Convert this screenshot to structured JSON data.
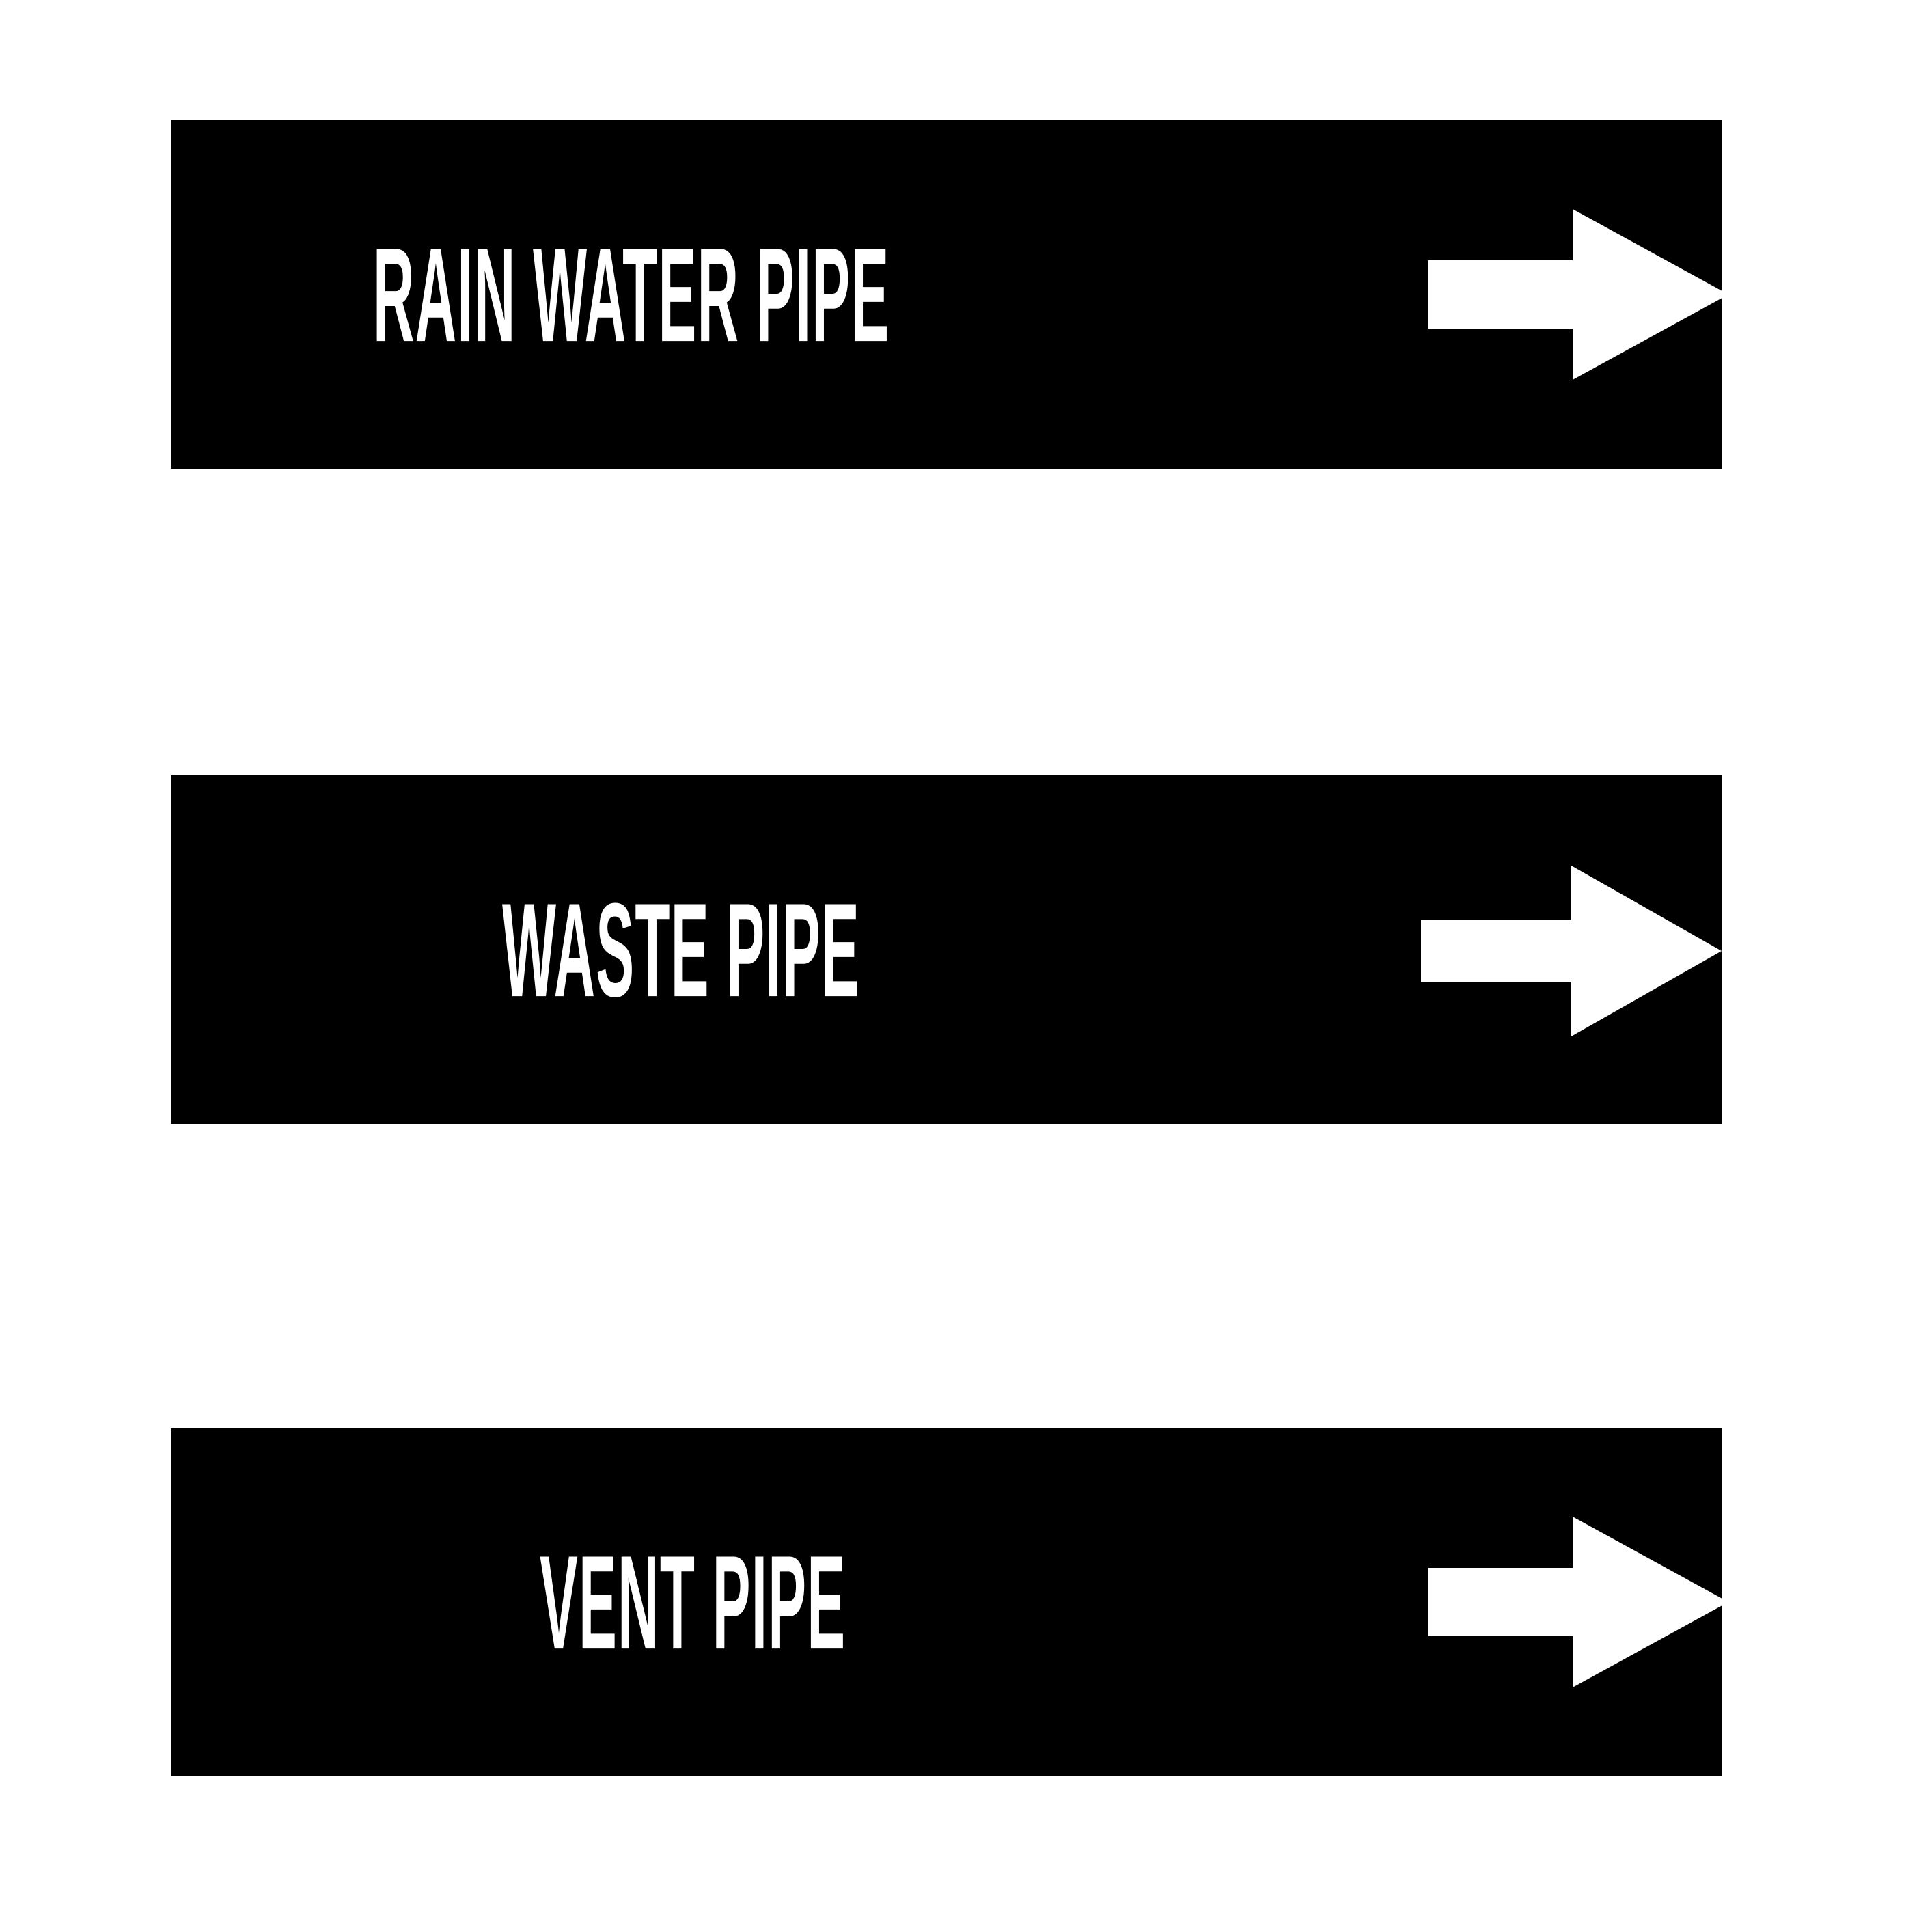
{
  "labels": [
    {
      "text": "RAIN WATER PIPE",
      "direction": "right-arrow-icon"
    },
    {
      "text": "WASTE PIPE",
      "direction": "right-arrow-icon"
    },
    {
      "text": "VENT PIPE",
      "direction": "right-arrow-icon"
    }
  ],
  "colors": {
    "background": "#ffffff",
    "label_fill": "#000000",
    "label_text": "#ffffff"
  }
}
